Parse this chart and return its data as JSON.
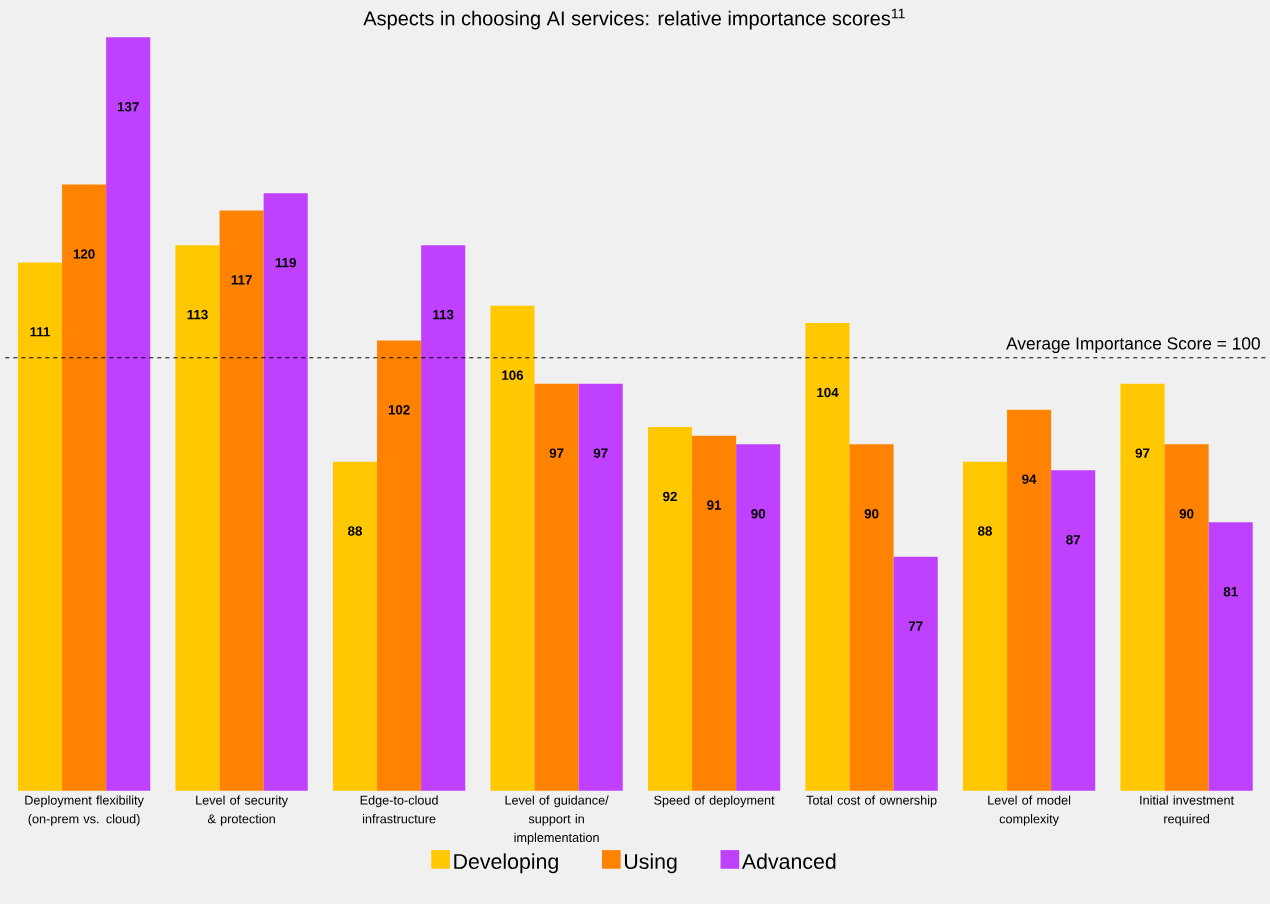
{
  "chart_data": {
    "type": "bar",
    "title": "Aspects in choosing AI services: relative importance scores$^{11}$",
    "categories": [
      "Deployment flexibility (on-prem vs. cloud)",
      "Level of security & protection",
      "Edge-to-cloud infrastructure",
      "Level of guidance/ support in implementation",
      "Speed of deployment",
      "Total cost of ownership",
      "Level of model complexity",
      "Initial investment required"
    ],
    "series": [
      {
        "name": "Developing",
        "color": "#ffc800",
        "values": [
          111,
          113,
          88,
          106,
          92,
          104,
          88,
          97
        ]
      },
      {
        "name": "Using",
        "color": "#ff8300",
        "values": [
          120,
          117,
          102,
          97,
          91,
          90,
          94,
          90
        ]
      },
      {
        "name": "Advanced",
        "color": "#c040ff",
        "values": [
          137,
          119,
          113,
          97,
          90,
          77,
          87,
          81
        ]
      }
    ],
    "ylim": [
      50,
      137
    ],
    "data_labels": true,
    "legend": "bottom",
    "ref_lines": [
      {
        "axis": "y",
        "value": 100,
        "label": "Average Importance  Score = 100",
        "line_style": "dashed",
        "color": "#000000"
      }
    ]
  }
}
